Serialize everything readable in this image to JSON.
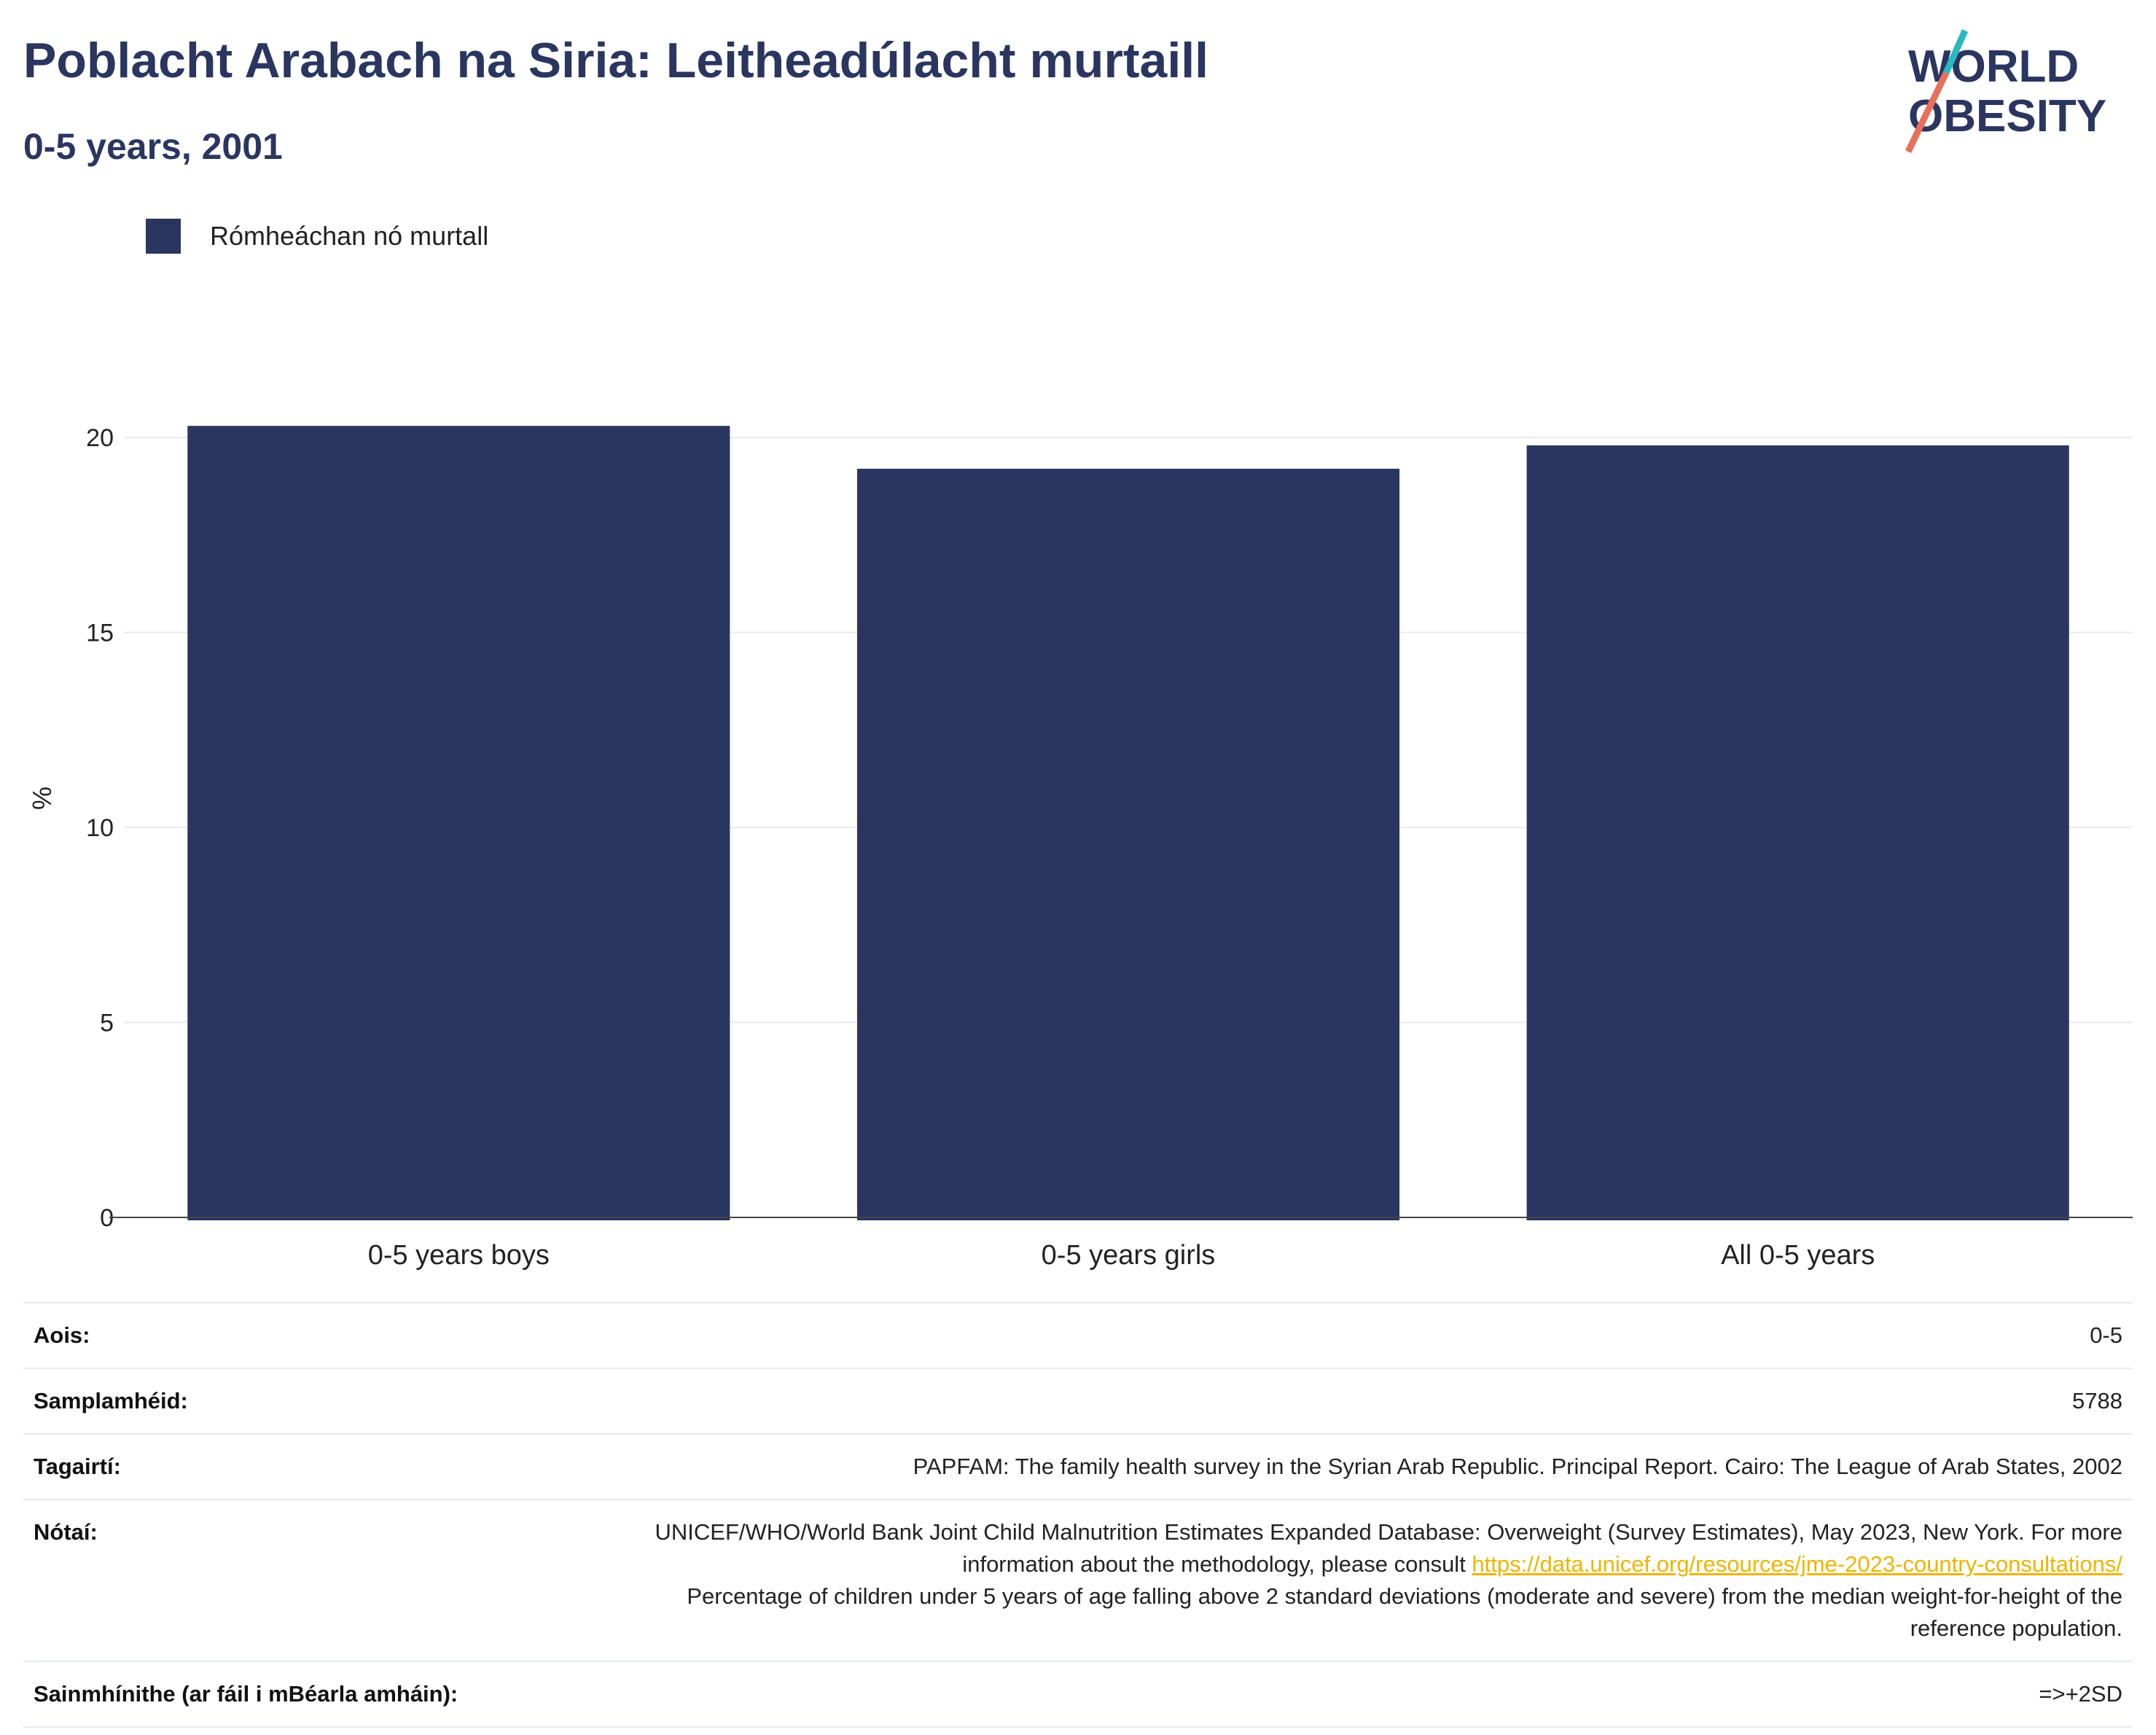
{
  "header": {
    "title": "Poblacht Arabach na Siria: Leitheadúlacht murtaill",
    "subtitle": "0-5 years, 2001"
  },
  "logo": {
    "line1": "WORLD",
    "line2": "OBESITY",
    "accent": "#e8705a",
    "accent2": "#2ab8c0"
  },
  "legend": {
    "label": "Rómheáchan nó murtall",
    "color": "#2a3660"
  },
  "chart_data": {
    "type": "bar",
    "categories": [
      "0-5 years boys",
      "0-5 years girls",
      "All 0-5 years"
    ],
    "series": [
      {
        "name": "Rómheáchan nó murtall",
        "values": [
          20.3,
          19.2,
          19.8
        ],
        "color": "#2a3660"
      }
    ],
    "ylabel": "%",
    "xlabel": "",
    "ylim": [
      0,
      21.5
    ],
    "yticks": [
      0,
      5,
      10,
      15,
      20
    ],
    "grid": true
  },
  "details": {
    "age_label": "Aois:",
    "age_value": "0-5",
    "sample_label": "Samplamhéid:",
    "sample_value": "5788",
    "refs_label": "Tagairtí:",
    "refs_value": "PAPFAM: The family health survey in the Syrian Arab Republic. Principal Report. Cairo: The League of Arab States, 2002",
    "notes_label": "Nótaí:",
    "notes_text1": "UNICEF/WHO/World Bank Joint Child Malnutrition Estimates Expanded Database: Overweight (Survey Estimates), May 2023, New York. For more information about the methodology, please consult ",
    "notes_link": "https://data.unicef.org/resources/jme-2023-country-consultations/",
    "notes_text2": "Percentage of children under 5 years of age falling above 2 standard deviations (moderate and severe) from the median weight-for-height of the reference population.",
    "def_label": "Sainmhínithe (ar fáil i mBéarla amháin):",
    "def_value": "=>+2SD"
  }
}
